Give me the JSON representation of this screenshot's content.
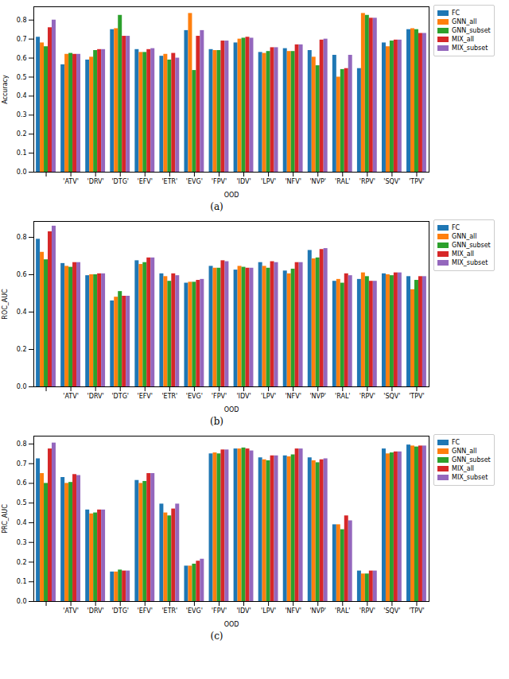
{
  "chart_data": [
    {
      "type": "bar",
      "caption": "(a)",
      "x_label": "OOD",
      "y_label": "Accuracy",
      "categories": [
        null,
        "'ATV'",
        "'DRV'",
        "'DTG'",
        "'EFV'",
        "'ETR'",
        "'EVG'",
        "'FPV'",
        "'IDV'",
        "'LPV'",
        "'NFV'",
        "'NVP'",
        "'RAL'",
        "'RPV'",
        "'SQV'",
        "'TPV'"
      ],
      "series": [
        {
          "name": "FC",
          "color": "#1f77b4",
          "values": [
            0.71,
            0.565,
            0.59,
            0.75,
            0.645,
            0.61,
            0.745,
            0.645,
            0.68,
            0.63,
            0.65,
            0.64,
            0.615,
            0.545,
            0.68,
            0.75
          ]
        },
        {
          "name": "GNN_all",
          "color": "#ff7f0e",
          "values": [
            0.68,
            0.62,
            0.605,
            0.755,
            0.63,
            0.62,
            0.835,
            0.64,
            0.7,
            0.625,
            0.635,
            0.605,
            0.5,
            0.835,
            0.66,
            0.755
          ]
        },
        {
          "name": "GNN_subset",
          "color": "#2ca02c",
          "values": [
            0.66,
            0.625,
            0.64,
            0.825,
            0.63,
            0.59,
            0.535,
            0.64,
            0.705,
            0.635,
            0.635,
            0.56,
            0.54,
            0.825,
            0.69,
            0.75
          ]
        },
        {
          "name": "MIX_all",
          "color": "#d62728",
          "values": [
            0.76,
            0.62,
            0.645,
            0.715,
            0.645,
            0.625,
            0.715,
            0.69,
            0.71,
            0.655,
            0.67,
            0.695,
            0.545,
            0.81,
            0.695,
            0.73
          ]
        },
        {
          "name": "MIX_subset",
          "color": "#9467bd",
          "values": [
            0.8,
            0.62,
            0.645,
            0.715,
            0.65,
            0.6,
            0.745,
            0.69,
            0.705,
            0.655,
            0.67,
            0.7,
            0.615,
            0.81,
            0.695,
            0.73
          ]
        }
      ],
      "ylim": [
        0,
        0.87
      ],
      "yticks": [
        {
          "value": 0,
          "label": "0.0"
        },
        0.1,
        0.2,
        0.3,
        0.4,
        0.5,
        0.6,
        0.7,
        0.8
      ],
      "grid": false,
      "legend": "right"
    },
    {
      "type": "bar",
      "caption": "(b)",
      "x_label": "OOD",
      "y_label": "ROC_AUC",
      "categories": [
        null,
        "'ATV'",
        "'DRV'",
        "'DTG'",
        "'EFV'",
        "'ETR'",
        "'EVG'",
        "'FPV'",
        "'IDV'",
        "'LPV'",
        "'NFV'",
        "'NVP'",
        "'RAL'",
        "'RPV'",
        "'SQV'",
        "'TPV'"
      ],
      "series": [
        {
          "name": "FC",
          "color": "#1f77b4",
          "values": [
            0.79,
            0.66,
            0.595,
            0.46,
            0.675,
            0.605,
            0.555,
            0.645,
            0.625,
            0.665,
            0.62,
            0.73,
            0.565,
            0.575,
            0.605,
            0.59
          ]
        },
        {
          "name": "GNN_all",
          "color": "#ff7f0e",
          "values": [
            0.72,
            0.645,
            0.6,
            0.48,
            0.655,
            0.59,
            0.56,
            0.635,
            0.645,
            0.645,
            0.605,
            0.685,
            0.575,
            0.61,
            0.6,
            0.52
          ]
        },
        {
          "name": "GNN_subset",
          "color": "#2ca02c",
          "values": [
            0.68,
            0.64,
            0.6,
            0.51,
            0.665,
            0.565,
            0.56,
            0.635,
            0.64,
            0.635,
            0.63,
            0.69,
            0.555,
            0.59,
            0.595,
            0.57
          ]
        },
        {
          "name": "MIX_all",
          "color": "#d62728",
          "values": [
            0.83,
            0.665,
            0.605,
            0.485,
            0.69,
            0.605,
            0.57,
            0.675,
            0.635,
            0.67,
            0.665,
            0.735,
            0.605,
            0.565,
            0.61,
            0.59
          ]
        },
        {
          "name": "MIX_subset",
          "color": "#9467bd",
          "values": [
            0.86,
            0.665,
            0.605,
            0.485,
            0.69,
            0.595,
            0.575,
            0.67,
            0.635,
            0.665,
            0.665,
            0.74,
            0.595,
            0.565,
            0.61,
            0.59
          ]
        }
      ],
      "ylim": [
        0,
        0.885
      ],
      "yticks": [
        {
          "value": 0,
          "label": "0.0"
        },
        0.2,
        0.4,
        0.6,
        0.8
      ],
      "grid": false,
      "legend": "right"
    },
    {
      "type": "bar",
      "caption": "(c)",
      "x_label": "OOD",
      "y_label": "PRC_AUC",
      "categories": [
        null,
        "'ATV'",
        "'DRV'",
        "'DTG'",
        "'EFV'",
        "'ETR'",
        "'EVG'",
        "'FPV'",
        "'IDV'",
        "'LPV'",
        "'NFV'",
        "'NVP'",
        "'RAL'",
        "'RPV'",
        "'SQV'",
        "'TPV'"
      ],
      "series": [
        {
          "name": "FC",
          "color": "#1f77b4",
          "values": [
            0.725,
            0.63,
            0.465,
            0.15,
            0.615,
            0.495,
            0.18,
            0.75,
            0.775,
            0.73,
            0.74,
            0.73,
            0.39,
            0.155,
            0.775,
            0.795
          ]
        },
        {
          "name": "GNN_all",
          "color": "#ff7f0e",
          "values": [
            0.65,
            0.6,
            0.445,
            0.15,
            0.6,
            0.45,
            0.18,
            0.755,
            0.775,
            0.72,
            0.735,
            0.715,
            0.39,
            0.14,
            0.75,
            0.79
          ]
        },
        {
          "name": "GNN_subset",
          "color": "#2ca02c",
          "values": [
            0.6,
            0.605,
            0.45,
            0.16,
            0.61,
            0.435,
            0.19,
            0.75,
            0.78,
            0.715,
            0.745,
            0.705,
            0.365,
            0.14,
            0.755,
            0.785
          ]
        },
        {
          "name": "MIX_all",
          "color": "#d62728",
          "values": [
            0.775,
            0.645,
            0.465,
            0.155,
            0.65,
            0.47,
            0.205,
            0.77,
            0.775,
            0.74,
            0.775,
            0.72,
            0.435,
            0.155,
            0.76,
            0.79
          ]
        },
        {
          "name": "MIX_subset",
          "color": "#9467bd",
          "values": [
            0.805,
            0.64,
            0.465,
            0.155,
            0.65,
            0.495,
            0.215,
            0.77,
            0.765,
            0.74,
            0.775,
            0.725,
            0.41,
            0.155,
            0.76,
            0.79
          ]
        }
      ],
      "ylim": [
        0,
        0.84
      ],
      "yticks": [
        {
          "value": 0,
          "label": "0.0"
        },
        0.1,
        0.2,
        0.3,
        0.4,
        0.5,
        0.6,
        0.7,
        0.8
      ],
      "grid": false,
      "legend": "right"
    }
  ]
}
